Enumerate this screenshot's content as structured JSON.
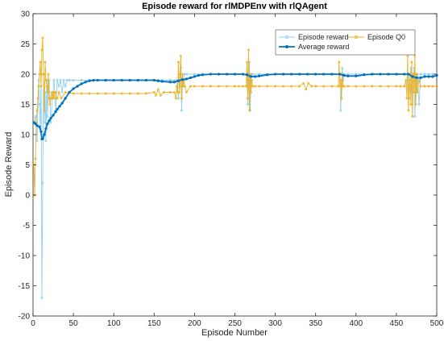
{
  "chart_data": {
    "type": "line",
    "title": "Episode reward for rlMDPEnv with rlQAgent",
    "xlabel": "Episode Number",
    "ylabel": "Episode Reward",
    "xlim": [
      0,
      500
    ],
    "ylim": [
      -20,
      30
    ],
    "xticks": [
      0,
      50,
      100,
      150,
      200,
      250,
      300,
      350,
      400,
      450,
      500
    ],
    "yticks": [
      -20,
      -15,
      -10,
      -5,
      0,
      5,
      10,
      15,
      20,
      25,
      30
    ],
    "grid": false,
    "legend_position": "top-right",
    "series": [
      {
        "name": "Episode reward",
        "color": "#8fd0f0",
        "marker": "circle-small",
        "points": [
          [
            1,
            12
          ],
          [
            3,
            13
          ],
          [
            5,
            9
          ],
          [
            7,
            19
          ],
          [
            8,
            15
          ],
          [
            9,
            11
          ],
          [
            10,
            20
          ],
          [
            11,
            -17
          ],
          [
            12,
            2
          ],
          [
            13,
            20
          ],
          [
            14,
            12
          ],
          [
            15,
            17
          ],
          [
            16,
            9
          ],
          [
            17,
            19
          ],
          [
            18,
            13
          ],
          [
            19,
            18
          ],
          [
            20,
            19
          ],
          [
            22,
            12
          ],
          [
            24,
            16
          ],
          [
            26,
            19
          ],
          [
            28,
            14
          ],
          [
            30,
            19
          ],
          [
            32,
            18
          ],
          [
            34,
            19
          ],
          [
            36,
            17
          ],
          [
            38,
            19
          ],
          [
            40,
            18
          ],
          [
            42,
            19
          ],
          [
            45,
            19
          ],
          [
            50,
            19
          ],
          [
            60,
            19
          ],
          [
            70,
            19
          ],
          [
            80,
            19
          ],
          [
            90,
            19
          ],
          [
            100,
            19
          ],
          [
            110,
            19
          ],
          [
            120,
            19
          ],
          [
            130,
            19
          ],
          [
            140,
            19
          ],
          [
            150,
            19
          ],
          [
            155,
            19
          ],
          [
            160,
            19
          ],
          [
            170,
            19
          ],
          [
            178,
            19
          ],
          [
            180,
            16
          ],
          [
            182,
            18
          ],
          [
            183,
            21
          ],
          [
            184,
            14
          ],
          [
            185,
            19
          ],
          [
            186,
            18
          ],
          [
            187,
            20
          ],
          [
            190,
            20
          ],
          [
            200,
            20
          ],
          [
            210,
            20
          ],
          [
            220,
            20
          ],
          [
            230,
            20
          ],
          [
            240,
            20
          ],
          [
            250,
            20
          ],
          [
            260,
            20
          ],
          [
            265,
            20
          ],
          [
            266,
            15
          ],
          [
            267,
            19
          ],
          [
            268,
            22
          ],
          [
            269,
            14
          ],
          [
            270,
            19
          ],
          [
            271,
            20
          ],
          [
            272,
            20
          ],
          [
            280,
            20
          ],
          [
            290,
            20
          ],
          [
            300,
            20
          ],
          [
            310,
            20
          ],
          [
            320,
            20
          ],
          [
            330,
            20
          ],
          [
            340,
            20
          ],
          [
            350,
            20
          ],
          [
            360,
            20
          ],
          [
            370,
            20
          ],
          [
            380,
            20
          ],
          [
            381,
            14
          ],
          [
            382,
            18
          ],
          [
            383,
            21
          ],
          [
            384,
            19
          ],
          [
            385,
            20
          ],
          [
            390,
            20
          ],
          [
            400,
            20
          ],
          [
            410,
            20
          ],
          [
            420,
            20
          ],
          [
            430,
            20
          ],
          [
            440,
            20
          ],
          [
            450,
            20
          ],
          [
            460,
            20
          ],
          [
            465,
            20
          ],
          [
            466,
            16
          ],
          [
            467,
            19
          ],
          [
            468,
            21
          ],
          [
            469,
            17
          ],
          [
            470,
            20
          ],
          [
            471,
            19
          ],
          [
            472,
            21
          ],
          [
            473,
            13
          ],
          [
            474,
            20
          ],
          [
            475,
            17
          ],
          [
            476,
            20
          ],
          [
            478,
            15
          ],
          [
            480,
            20
          ],
          [
            485,
            20
          ],
          [
            490,
            20
          ],
          [
            495,
            20
          ],
          [
            500,
            20
          ]
        ]
      },
      {
        "name": "Episode Q0",
        "color": "#edb120",
        "marker": "circle-small",
        "points": [
          [
            1,
            5
          ],
          [
            2,
            0
          ],
          [
            3,
            6
          ],
          [
            4,
            12
          ],
          [
            5,
            14
          ],
          [
            6,
            16
          ],
          [
            7,
            18
          ],
          [
            8,
            20
          ],
          [
            9,
            22
          ],
          [
            10,
            18
          ],
          [
            11,
            24
          ],
          [
            12,
            26
          ],
          [
            13,
            20
          ],
          [
            14,
            14
          ],
          [
            15,
            22
          ],
          [
            16,
            19
          ],
          [
            17,
            18
          ],
          [
            18,
            17
          ],
          [
            19,
            20
          ],
          [
            20,
            16
          ],
          [
            21,
            15
          ],
          [
            22,
            16
          ],
          [
            23,
            17
          ],
          [
            24,
            16
          ],
          [
            25,
            17
          ],
          [
            26,
            16
          ],
          [
            27,
            17
          ],
          [
            28,
            17
          ],
          [
            29,
            16
          ],
          [
            30,
            16
          ],
          [
            32,
            17
          ],
          [
            35,
            16
          ],
          [
            40,
            17
          ],
          [
            50,
            16.8
          ],
          [
            60,
            16.8
          ],
          [
            70,
            16.8
          ],
          [
            80,
            16.8
          ],
          [
            90,
            16.8
          ],
          [
            100,
            16.8
          ],
          [
            110,
            16.8
          ],
          [
            120,
            16.8
          ],
          [
            130,
            16.8
          ],
          [
            140,
            16.8
          ],
          [
            150,
            17
          ],
          [
            152,
            16.5
          ],
          [
            155,
            17.5
          ],
          [
            158,
            16.5
          ],
          [
            162,
            17
          ],
          [
            170,
            17
          ],
          [
            175,
            17
          ],
          [
            177,
            16
          ],
          [
            178,
            18
          ],
          [
            179,
            17
          ],
          [
            180,
            22
          ],
          [
            181,
            17
          ],
          [
            182,
            20
          ],
          [
            183,
            23
          ],
          [
            184,
            16
          ],
          [
            185,
            20
          ],
          [
            186,
            18
          ],
          [
            187,
            19
          ],
          [
            188,
            18
          ],
          [
            190,
            17
          ],
          [
            195,
            18
          ],
          [
            200,
            18
          ],
          [
            210,
            18
          ],
          [
            220,
            18
          ],
          [
            230,
            18
          ],
          [
            240,
            18
          ],
          [
            250,
            18
          ],
          [
            255,
            18
          ],
          [
            260,
            18
          ],
          [
            264,
            18
          ],
          [
            265,
            22
          ],
          [
            266,
            16
          ],
          [
            267,
            24
          ],
          [
            268,
            14
          ],
          [
            269,
            20
          ],
          [
            270,
            17
          ],
          [
            271,
            19
          ],
          [
            272,
            18
          ],
          [
            275,
            18
          ],
          [
            280,
            18
          ],
          [
            290,
            18
          ],
          [
            300,
            18
          ],
          [
            310,
            18
          ],
          [
            320,
            18
          ],
          [
            330,
            18
          ],
          [
            335,
            18.5
          ],
          [
            338,
            17.5
          ],
          [
            341,
            18.5
          ],
          [
            345,
            18
          ],
          [
            350,
            18
          ],
          [
            360,
            18
          ],
          [
            370,
            18
          ],
          [
            378,
            18
          ],
          [
            379,
            22
          ],
          [
            380,
            18
          ],
          [
            381,
            19
          ],
          [
            382,
            16
          ],
          [
            383,
            20
          ],
          [
            384,
            18
          ],
          [
            385,
            18
          ],
          [
            390,
            18
          ],
          [
            400,
            18
          ],
          [
            410,
            18
          ],
          [
            420,
            18
          ],
          [
            430,
            18
          ],
          [
            440,
            18
          ],
          [
            450,
            18
          ],
          [
            455,
            18
          ],
          [
            460,
            18
          ],
          [
            462,
            19
          ],
          [
            463,
            16
          ],
          [
            464,
            23
          ],
          [
            465,
            14
          ],
          [
            466,
            18
          ],
          [
            467,
            20
          ],
          [
            468,
            15
          ],
          [
            469,
            22
          ],
          [
            470,
            13
          ],
          [
            471,
            20
          ],
          [
            472,
            17
          ],
          [
            473,
            23
          ],
          [
            474,
            15
          ],
          [
            475,
            20
          ],
          [
            476,
            17
          ],
          [
            478,
            19
          ],
          [
            480,
            18
          ],
          [
            485,
            18
          ],
          [
            490,
            18
          ],
          [
            495,
            18
          ],
          [
            500,
            18
          ]
        ]
      },
      {
        "name": "Average reward",
        "color": "#0072bd",
        "marker": "dot",
        "points": [
          [
            1,
            12
          ],
          [
            3,
            11.8
          ],
          [
            5,
            11.5
          ],
          [
            8,
            11.3
          ],
          [
            10,
            10.5
          ],
          [
            11,
            9.3
          ],
          [
            12,
            9.3
          ],
          [
            14,
            10
          ],
          [
            16,
            11
          ],
          [
            18,
            11.8
          ],
          [
            20,
            12.3
          ],
          [
            22,
            12.7
          ],
          [
            25,
            13.2
          ],
          [
            28,
            13.8
          ],
          [
            30,
            14.2
          ],
          [
            33,
            14.7
          ],
          [
            36,
            15.2
          ],
          [
            40,
            16
          ],
          [
            45,
            17
          ],
          [
            50,
            17.6
          ],
          [
            55,
            18
          ],
          [
            60,
            18.4
          ],
          [
            65,
            18.7
          ],
          [
            70,
            18.9
          ],
          [
            75,
            19
          ],
          [
            80,
            19
          ],
          [
            90,
            19
          ],
          [
            100,
            19
          ],
          [
            110,
            19
          ],
          [
            120,
            19
          ],
          [
            130,
            19
          ],
          [
            140,
            19
          ],
          [
            150,
            19
          ],
          [
            155,
            18.9
          ],
          [
            160,
            18.8
          ],
          [
            170,
            18.7
          ],
          [
            175,
            18.7
          ],
          [
            180,
            18.9
          ],
          [
            185,
            19.1
          ],
          [
            190,
            19.2
          ],
          [
            195,
            19.4
          ],
          [
            200,
            19.6
          ],
          [
            205,
            19.8
          ],
          [
            210,
            19.9
          ],
          [
            220,
            20
          ],
          [
            230,
            20
          ],
          [
            240,
            20
          ],
          [
            250,
            20
          ],
          [
            260,
            20
          ],
          [
            265,
            19.9
          ],
          [
            270,
            19.6
          ],
          [
            275,
            19.6
          ],
          [
            280,
            19.7
          ],
          [
            290,
            19.9
          ],
          [
            300,
            20
          ],
          [
            310,
            20
          ],
          [
            320,
            20
          ],
          [
            330,
            20
          ],
          [
            340,
            20
          ],
          [
            350,
            20
          ],
          [
            360,
            20
          ],
          [
            370,
            20
          ],
          [
            380,
            20
          ],
          [
            385,
            19.8
          ],
          [
            390,
            19.7
          ],
          [
            400,
            19.7
          ],
          [
            410,
            19.9
          ],
          [
            420,
            20
          ],
          [
            430,
            20
          ],
          [
            440,
            20
          ],
          [
            450,
            20
          ],
          [
            460,
            20
          ],
          [
            465,
            20
          ],
          [
            470,
            19.6
          ],
          [
            475,
            19.4
          ],
          [
            480,
            19.4
          ],
          [
            485,
            19.6
          ],
          [
            490,
            19.6
          ],
          [
            495,
            19.6
          ],
          [
            500,
            19.8
          ]
        ]
      }
    ]
  }
}
